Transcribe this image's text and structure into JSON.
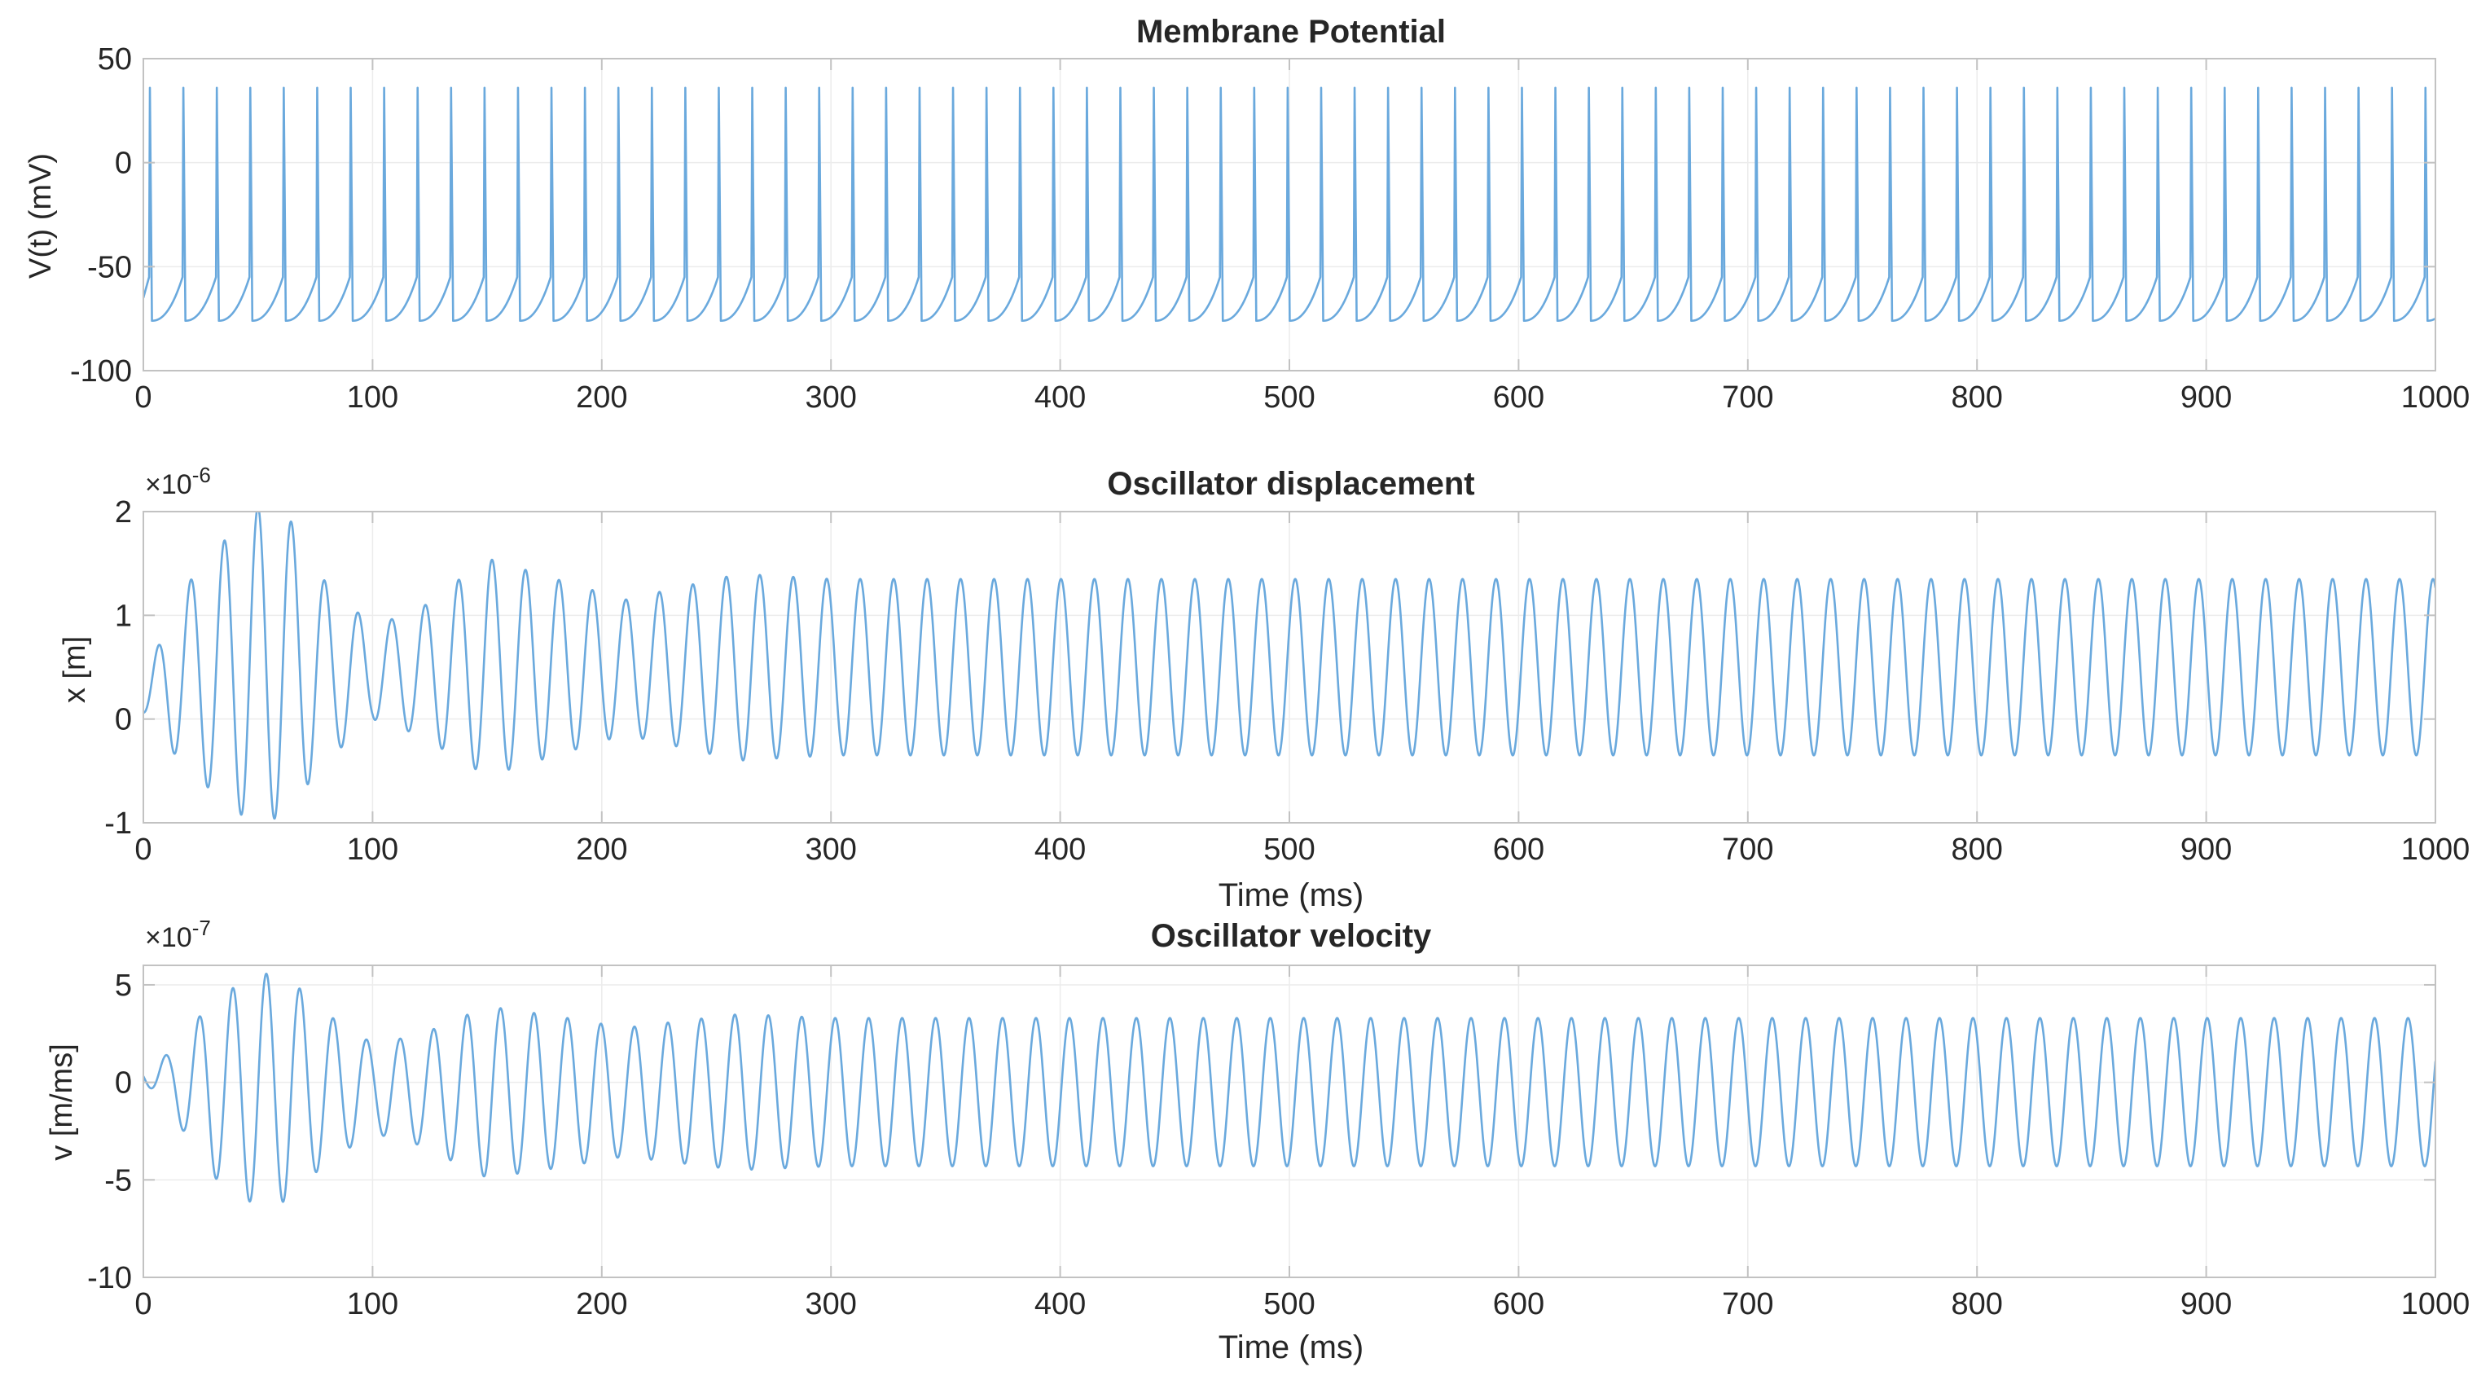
{
  "colors": {
    "line": "#6aa9dd",
    "axes": "#c2c2c2",
    "grid": "#ececec",
    "text": "#262626"
  },
  "chart_data": [
    {
      "type": "line",
      "title": "Membrane Potential",
      "xlabel": "",
      "ylabel": "V(t) (mV)",
      "exponent_label": "",
      "xlim": [
        0,
        1000
      ],
      "ylim": [
        -100,
        50
      ],
      "xticks": [
        0,
        100,
        200,
        300,
        400,
        500,
        600,
        700,
        800,
        900,
        1000
      ],
      "yticks": [
        -100,
        -50,
        0,
        50
      ],
      "ytick_labels": [
        "-100",
        "-50",
        "0",
        "50"
      ],
      "grid": true,
      "series": [
        {
          "kind": "spike_train",
          "first_spike_ms": 2.5,
          "isi_ms": 14.6,
          "spike_count": 69,
          "peak_mV": 36,
          "trough_mV": -76,
          "threshold_mV": -55,
          "initial_mV": -65
        }
      ]
    },
    {
      "type": "line",
      "title": "Oscillator displacement",
      "xlabel": "Time (ms)",
      "ylabel": "x [m]",
      "exponent_label": "×10",
      "exponent": "-6",
      "xlim": [
        0,
        1000
      ],
      "ylim": [
        -1,
        2
      ],
      "xticks": [
        0,
        100,
        200,
        300,
        400,
        500,
        600,
        700,
        800,
        900,
        1000
      ],
      "yticks": [
        -1,
        0,
        1,
        2
      ],
      "ytick_labels": [
        "-1",
        "0",
        "1",
        "2"
      ],
      "grid": true,
      "series": [
        {
          "kind": "oscillation",
          "period_ms": 14.6,
          "phase_ms": 2.5,
          "envelope": [
            {
              "t": 0,
              "center": 0.15,
              "amp": 0.1
            },
            {
              "t": 12,
              "center": 0.4,
              "amp": 0.7
            },
            {
              "t": 30,
              "center": 0.45,
              "amp": 1.15
            },
            {
              "t": 50,
              "center": 0.5,
              "amp": 1.55
            },
            {
              "t": 62,
              "center": 0.55,
              "amp": 1.45
            },
            {
              "t": 80,
              "center": 0.45,
              "amp": 0.85
            },
            {
              "t": 100,
              "center": 0.45,
              "amp": 0.45
            },
            {
              "t": 120,
              "center": 0.45,
              "amp": 0.6
            },
            {
              "t": 150,
              "center": 0.5,
              "amp": 1.05
            },
            {
              "t": 180,
              "center": 0.5,
              "amp": 0.85
            },
            {
              "t": 210,
              "center": 0.5,
              "amp": 0.65
            },
            {
              "t": 260,
              "center": 0.5,
              "amp": 0.9
            },
            {
              "t": 300,
              "center": 0.5,
              "amp": 0.85
            },
            {
              "t": 400,
              "center": 0.5,
              "amp": 0.85
            },
            {
              "t": 1000,
              "center": 0.5,
              "amp": 0.85
            }
          ]
        }
      ]
    },
    {
      "type": "line",
      "title": "Oscillator velocity",
      "xlabel": "Time (ms)",
      "ylabel": "v [m/ms]",
      "exponent_label": "×10",
      "exponent": "-7",
      "xlim": [
        0,
        1000
      ],
      "ylim": [
        -10,
        6
      ],
      "xticks": [
        0,
        100,
        200,
        300,
        400,
        500,
        600,
        700,
        800,
        900,
        1000
      ],
      "yticks": [
        -10,
        -5,
        0,
        5
      ],
      "ytick_labels": [
        "-10",
        "-5",
        "0",
        "5"
      ],
      "grid": true,
      "series": [
        {
          "kind": "oscillation",
          "period_ms": 14.6,
          "phase_ms": 6.2,
          "envelope": [
            {
              "t": 0,
              "center": 0.5,
              "amp": 0.4
            },
            {
              "t": 12,
              "center": 0.0,
              "amp": 1.5
            },
            {
              "t": 30,
              "center": -0.3,
              "amp": 4.5
            },
            {
              "t": 50,
              "center": -0.4,
              "amp": 6.0
            },
            {
              "t": 62,
              "center": -0.3,
              "amp": 5.8
            },
            {
              "t": 80,
              "center": -0.3,
              "amp": 3.8
            },
            {
              "t": 100,
              "center": -0.3,
              "amp": 2.3
            },
            {
              "t": 120,
              "center": -0.4,
              "amp": 2.8
            },
            {
              "t": 150,
              "center": -0.5,
              "amp": 4.4
            },
            {
              "t": 180,
              "center": -0.5,
              "amp": 3.9
            },
            {
              "t": 210,
              "center": -0.5,
              "amp": 3.3
            },
            {
              "t": 260,
              "center": -0.5,
              "amp": 4.0
            },
            {
              "t": 300,
              "center": -0.5,
              "amp": 3.8
            },
            {
              "t": 1000,
              "center": -0.5,
              "amp": 3.8
            }
          ]
        }
      ]
    }
  ]
}
